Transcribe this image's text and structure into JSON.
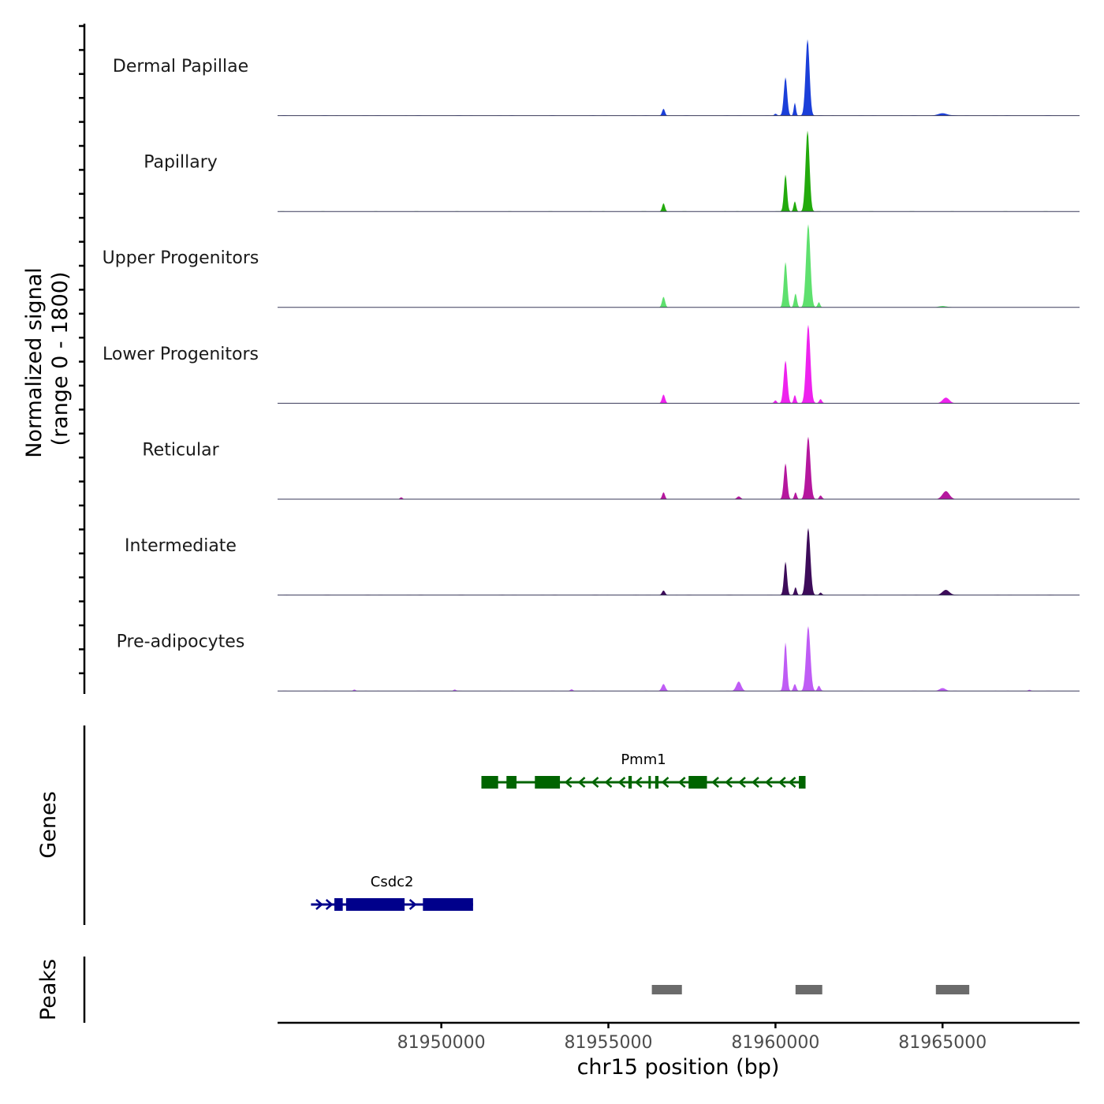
{
  "chart_data": {
    "type": "area",
    "subtype": "genome-coverage-track",
    "chromosome": "chr15",
    "xlabel": "chr15 position (bp)",
    "xlim": [
      81945100,
      81969100
    ],
    "xticks": [
      81950000,
      81955000,
      81960000,
      81965000
    ],
    "xtick_labels": [
      "81950000",
      "81955000",
      "81960000",
      "81965000"
    ],
    "signal": {
      "ylabel_line1": "Normalized signal",
      "ylabel_line2": "(range 0 - 1800)",
      "ylim": [
        0,
        1800
      ],
      "tracks": [
        {
          "name": "Dermal Papillae",
          "color": "#1b3fd9",
          "peaks": [
            {
              "pos": 81956650,
              "height": 150,
              "width": 90
            },
            {
              "pos": 81960000,
              "height": 40,
              "width": 80
            },
            {
              "pos": 81960300,
              "height": 830,
              "width": 110
            },
            {
              "pos": 81960580,
              "height": 280,
              "width": 70
            },
            {
              "pos": 81960960,
              "height": 1650,
              "width": 130
            },
            {
              "pos": 81965000,
              "height": 50,
              "width": 300
            }
          ]
        },
        {
          "name": "Papillary",
          "color": "#22aa0c",
          "peaks": [
            {
              "pos": 81956650,
              "height": 180,
              "width": 90
            },
            {
              "pos": 81960300,
              "height": 800,
              "width": 100
            },
            {
              "pos": 81960580,
              "height": 220,
              "width": 80
            },
            {
              "pos": 81960960,
              "height": 1750,
              "width": 130
            }
          ]
        },
        {
          "name": "Upper Progenitors",
          "color": "#5ee06e",
          "peaks": [
            {
              "pos": 81956650,
              "height": 230,
              "width": 100
            },
            {
              "pos": 81960300,
              "height": 980,
              "width": 110
            },
            {
              "pos": 81960600,
              "height": 300,
              "width": 90
            },
            {
              "pos": 81960980,
              "height": 1800,
              "width": 140
            },
            {
              "pos": 81961300,
              "height": 110,
              "width": 80
            },
            {
              "pos": 81965000,
              "height": 30,
              "width": 250
            }
          ]
        },
        {
          "name": "Lower Progenitors",
          "color": "#ee22ee",
          "peaks": [
            {
              "pos": 81956650,
              "height": 190,
              "width": 100
            },
            {
              "pos": 81960000,
              "height": 60,
              "width": 80
            },
            {
              "pos": 81960300,
              "height": 920,
              "width": 120
            },
            {
              "pos": 81960580,
              "height": 180,
              "width": 80
            },
            {
              "pos": 81960980,
              "height": 1700,
              "width": 140
            },
            {
              "pos": 81961350,
              "height": 90,
              "width": 90
            },
            {
              "pos": 81965100,
              "height": 120,
              "width": 220
            }
          ]
        },
        {
          "name": "Reticular",
          "color": "#b5179e",
          "peaks": [
            {
              "pos": 81948800,
              "height": 40,
              "width": 90
            },
            {
              "pos": 81956650,
              "height": 150,
              "width": 90
            },
            {
              "pos": 81958900,
              "height": 60,
              "width": 120
            },
            {
              "pos": 81960300,
              "height": 770,
              "width": 110
            },
            {
              "pos": 81960600,
              "height": 150,
              "width": 80
            },
            {
              "pos": 81960980,
              "height": 1350,
              "width": 140
            },
            {
              "pos": 81961350,
              "height": 80,
              "width": 90
            },
            {
              "pos": 81965100,
              "height": 170,
              "width": 230
            }
          ]
        },
        {
          "name": "Intermediate",
          "color": "#3d0c5a",
          "peaks": [
            {
              "pos": 81956650,
              "height": 100,
              "width": 100
            },
            {
              "pos": 81960300,
              "height": 720,
              "width": 100
            },
            {
              "pos": 81960600,
              "height": 170,
              "width": 80
            },
            {
              "pos": 81960980,
              "height": 1450,
              "width": 140
            },
            {
              "pos": 81961350,
              "height": 50,
              "width": 80
            },
            {
              "pos": 81965100,
              "height": 110,
              "width": 230
            }
          ]
        },
        {
          "name": "Pre-adipocytes",
          "color": "#bf5cf5",
          "peaks": [
            {
              "pos": 81947400,
              "height": 30,
              "width": 80
            },
            {
              "pos": 81950400,
              "height": 30,
              "width": 80
            },
            {
              "pos": 81953900,
              "height": 35,
              "width": 90
            },
            {
              "pos": 81956650,
              "height": 150,
              "width": 120
            },
            {
              "pos": 81958900,
              "height": 200,
              "width": 160
            },
            {
              "pos": 81960300,
              "height": 1050,
              "width": 100
            },
            {
              "pos": 81960580,
              "height": 150,
              "width": 90
            },
            {
              "pos": 81960980,
              "height": 1400,
              "width": 140
            },
            {
              "pos": 81961300,
              "height": 110,
              "width": 90
            },
            {
              "pos": 81965000,
              "height": 60,
              "width": 200
            },
            {
              "pos": 81967600,
              "height": 25,
              "width": 90
            }
          ]
        }
      ]
    },
    "genes": {
      "ylabel": "Genes",
      "items": [
        {
          "name": "Pmm1",
          "strand": "-",
          "color": "#006400",
          "start": 81951200,
          "end": 81960900,
          "exons": [
            [
              81951200,
              81951700
            ],
            [
              81951950,
              81952250
            ],
            [
              81952800,
              81953550
            ],
            [
              81955600,
              81955700
            ],
            [
              81956200,
              81956270
            ],
            [
              81956400,
              81956500
            ],
            [
              81957400,
              81957950
            ],
            [
              81960700,
              81960900
            ]
          ],
          "arrows": [
            81953800,
            81954200,
            81954600,
            81955000,
            81955400,
            81955900,
            81956700,
            81957200,
            81958200,
            81958600,
            81959000,
            81959400,
            81959800,
            81960200,
            81960500
          ]
        },
        {
          "name": "Csdc2",
          "strand": "+",
          "color": "#00008b",
          "start": 81946100,
          "end": 81950950,
          "exons": [
            [
              81946800,
              81947050
            ],
            [
              81947150,
              81948900
            ],
            [
              81949450,
              81950950
            ]
          ],
          "arrows": [
            81946350,
            81946650,
            81949150
          ]
        }
      ]
    },
    "peaks": {
      "ylabel": "Peaks",
      "color": "#6b6b6b",
      "regions": [
        [
          81956300,
          81957200
        ],
        [
          81960600,
          81961400
        ],
        [
          81964800,
          81965800
        ]
      ]
    }
  }
}
